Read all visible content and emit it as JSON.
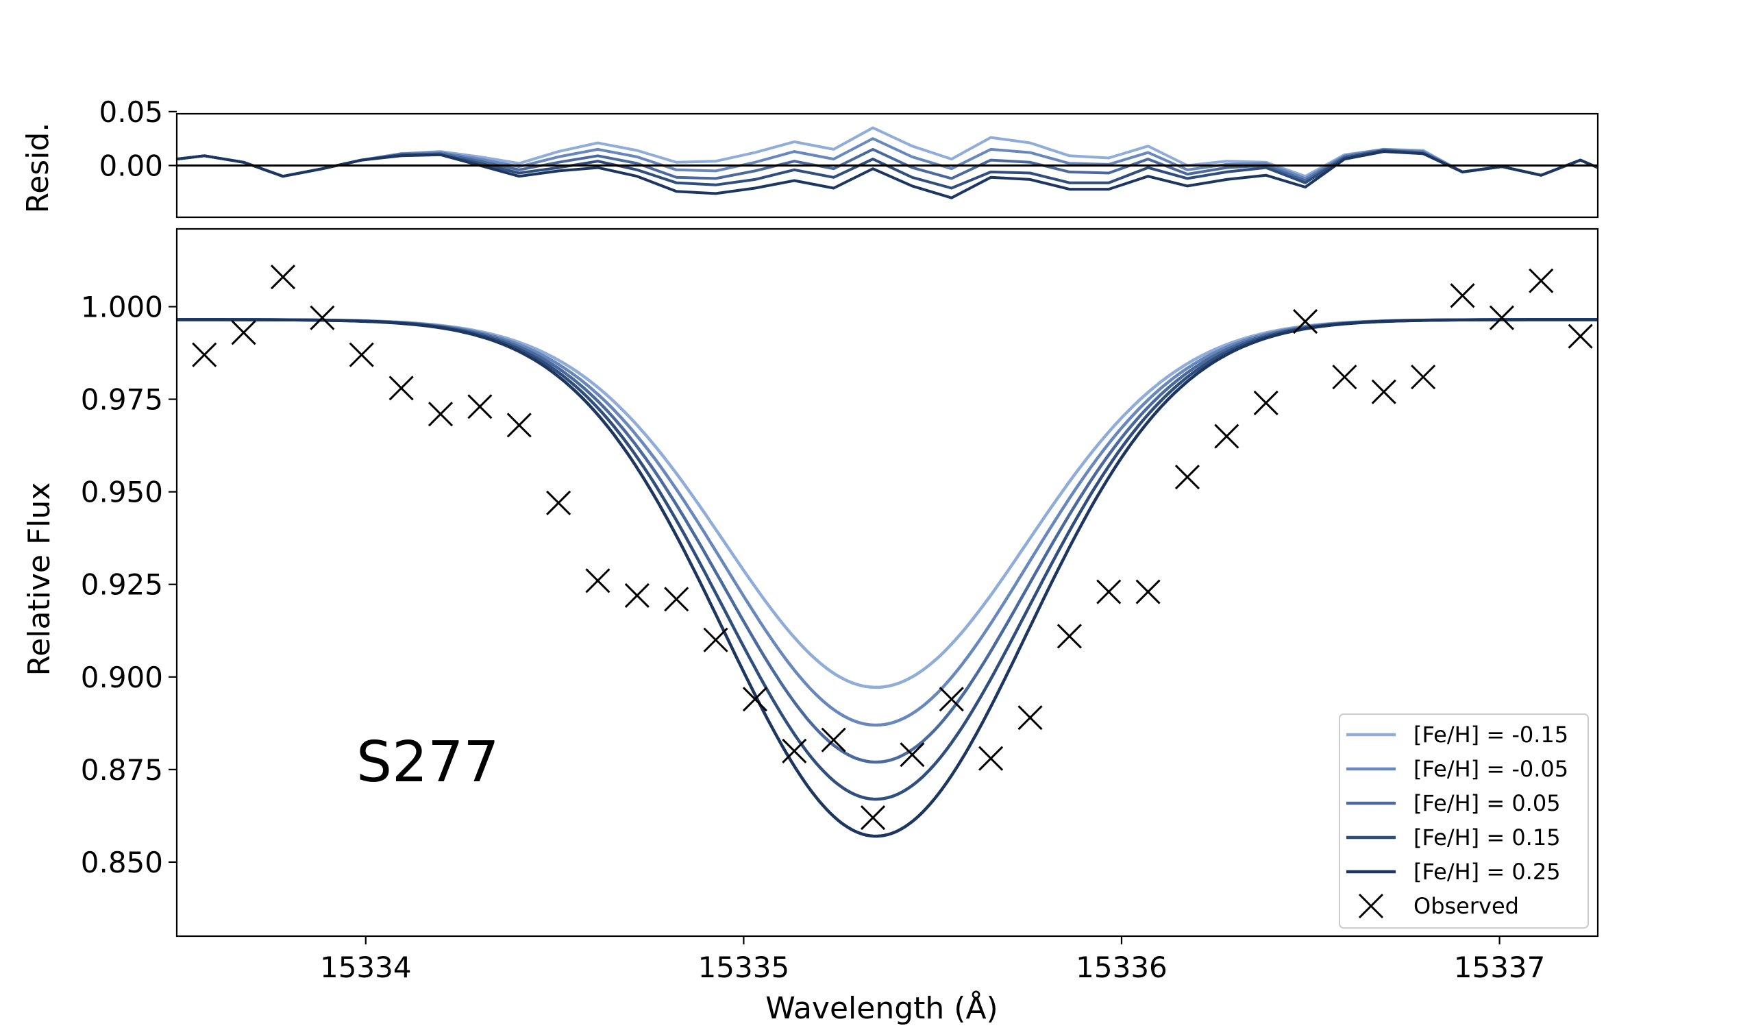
{
  "chart_data": [
    {
      "type": "line",
      "panel": "residuals",
      "ylabel": "Resid.",
      "xlim": [
        15333.5,
        15337.26
      ],
      "ylim": [
        -0.048,
        0.048
      ],
      "yticks": [
        0.05,
        0.0
      ],
      "ytick_labels": [
        "0.05",
        "0.00"
      ],
      "zero_line": 0.0,
      "x": [
        15333.5,
        15333.573,
        15333.677,
        15333.781,
        15333.885,
        15333.989,
        15334.094,
        15334.198,
        15334.302,
        15334.406,
        15334.51,
        15334.614,
        15334.718,
        15334.822,
        15334.926,
        15335.03,
        15335.134,
        15335.238,
        15335.342,
        15335.446,
        15335.55,
        15335.654,
        15335.758,
        15335.862,
        15335.966,
        15336.07,
        15336.174,
        15336.278,
        15336.382,
        15336.486,
        15336.59,
        15336.694,
        15336.798,
        15336.902,
        15337.006,
        15337.11,
        15337.214,
        15337.26
      ],
      "series": [
        {
          "name": "[Fe/H] = -0.15",
          "color": "#8fadd8",
          "values": [
            0.006,
            0.009,
            0.003,
            -0.01,
            -0.003,
            0.005,
            0.011,
            0.013,
            0.008,
            0.002,
            0.013,
            0.021,
            0.014,
            0.003,
            0.004,
            0.012,
            0.022,
            0.015,
            0.035,
            0.018,
            0.006,
            0.026,
            0.021,
            0.009,
            0.007,
            0.018,
            0.0,
            0.004,
            0.003,
            -0.01,
            0.01,
            0.015,
            0.014,
            -0.006,
            -0.001,
            -0.009,
            0.005,
            -0.002
          ]
        },
        {
          "name": "[Fe/H] = -0.05",
          "color": "#6888bd",
          "values": [
            0.006,
            0.009,
            0.003,
            -0.01,
            -0.003,
            0.005,
            0.011,
            0.012,
            0.006,
            -0.001,
            0.008,
            0.015,
            0.008,
            -0.004,
            -0.005,
            0.003,
            0.013,
            0.006,
            0.025,
            0.008,
            -0.003,
            0.015,
            0.012,
            0.002,
            0.001,
            0.012,
            -0.004,
            0.001,
            0.002,
            -0.012,
            0.009,
            0.015,
            0.013,
            -0.006,
            -0.001,
            -0.009,
            0.005,
            -0.002
          ]
        },
        {
          "name": "[Fe/H] = 0.05",
          "color": "#4a6a9e",
          "values": [
            0.006,
            0.009,
            0.003,
            -0.01,
            -0.003,
            0.005,
            0.01,
            0.011,
            0.004,
            -0.004,
            0.003,
            0.009,
            0.002,
            -0.011,
            -0.012,
            -0.005,
            0.004,
            -0.003,
            0.015,
            -0.002,
            -0.012,
            0.005,
            0.003,
            -0.006,
            -0.007,
            0.006,
            -0.008,
            -0.002,
            0.0,
            -0.014,
            0.008,
            0.014,
            0.012,
            -0.006,
            -0.001,
            -0.009,
            0.005,
            -0.002
          ]
        },
        {
          "name": "[Fe/H] = 0.15",
          "color": "#304e7c",
          "values": [
            0.006,
            0.009,
            0.003,
            -0.01,
            -0.003,
            0.005,
            0.01,
            0.01,
            0.002,
            -0.007,
            -0.002,
            0.004,
            -0.004,
            -0.016,
            -0.018,
            -0.013,
            -0.004,
            -0.011,
            0.006,
            -0.011,
            -0.021,
            -0.006,
            -0.007,
            -0.016,
            -0.016,
            -0.002,
            -0.012,
            -0.006,
            -0.002,
            -0.016,
            0.007,
            0.014,
            0.011,
            -0.006,
            -0.001,
            -0.009,
            0.005,
            -0.002
          ]
        },
        {
          "name": "[Fe/H] = 0.25",
          "color": "#1c3660",
          "values": [
            0.006,
            0.009,
            0.003,
            -0.01,
            -0.003,
            0.005,
            0.009,
            0.01,
            0.0,
            -0.01,
            -0.005,
            -0.002,
            -0.01,
            -0.024,
            -0.026,
            -0.021,
            -0.014,
            -0.021,
            -0.003,
            -0.019,
            -0.03,
            -0.011,
            -0.013,
            -0.022,
            -0.022,
            -0.01,
            -0.019,
            -0.013,
            -0.009,
            -0.02,
            0.006,
            0.013,
            0.011,
            -0.006,
            -0.001,
            -0.009,
            0.005,
            -0.002
          ]
        }
      ]
    },
    {
      "type": "line",
      "panel": "main",
      "xlabel": "Wavelength (Å)",
      "ylabel": "Relative Flux",
      "xlim": [
        15333.5,
        15337.26
      ],
      "ylim": [
        0.83,
        1.021
      ],
      "xticks": [
        15334,
        15335,
        15336,
        15337
      ],
      "xtick_labels": [
        "15334",
        "15335",
        "15336",
        "15337"
      ],
      "yticks": [
        1.0,
        0.975,
        0.95,
        0.925,
        0.9,
        0.875,
        0.85
      ],
      "ytick_labels": [
        "1.000",
        "0.975",
        "0.950",
        "0.925",
        "0.900",
        "0.875",
        "0.850"
      ],
      "annotation": "S277",
      "legend_position": "bottom-right",
      "model": {
        "continuum": 0.9965,
        "center": 15335.35,
        "sigma": 0.4
      },
      "series": [
        {
          "name": "[Fe/H] = -0.15",
          "color": "#8fadd8",
          "depth": 0.0993,
          "min_flux": 0.8972
        },
        {
          "name": "[Fe/H] = -0.05",
          "color": "#6888bd",
          "depth": 0.1095,
          "min_flux": 0.887
        },
        {
          "name": "[Fe/H] = 0.05",
          "color": "#4a6a9e",
          "depth": 0.1195,
          "min_flux": 0.877
        },
        {
          "name": "[Fe/H] = 0.15",
          "color": "#304e7c",
          "depth": 0.1295,
          "min_flux": 0.867
        },
        {
          "name": "[Fe/H] = 0.25",
          "color": "#1c3660",
          "depth": 0.1395,
          "min_flux": 0.857
        }
      ],
      "observed": {
        "name": "Observed",
        "color": "#000000",
        "marker": "x",
        "x": [
          15333.573,
          15333.677,
          15333.781,
          15333.885,
          15333.989,
          15334.094,
          15334.198,
          15334.302,
          15334.406,
          15334.51,
          15334.614,
          15334.718,
          15334.822,
          15334.926,
          15335.03,
          15335.134,
          15335.238,
          15335.342,
          15335.446,
          15335.55,
          15335.654,
          15335.758,
          15335.862,
          15335.966,
          15336.07,
          15336.174,
          15336.278,
          15336.382,
          15336.486,
          15336.59,
          15336.694,
          15336.798,
          15336.902,
          15337.006,
          15337.11,
          15337.214
        ],
        "y": [
          0.987,
          0.993,
          1.008,
          0.997,
          0.987,
          0.978,
          0.971,
          0.973,
          0.968,
          0.947,
          0.926,
          0.922,
          0.921,
          0.91,
          0.894,
          0.88,
          0.883,
          0.862,
          0.879,
          0.894,
          0.878,
          0.889,
          0.911,
          0.923,
          0.923,
          0.954,
          0.965,
          0.974,
          0.996,
          0.981,
          0.977,
          0.981,
          1.003,
          0.997,
          1.007,
          0.992
        ]
      }
    }
  ]
}
